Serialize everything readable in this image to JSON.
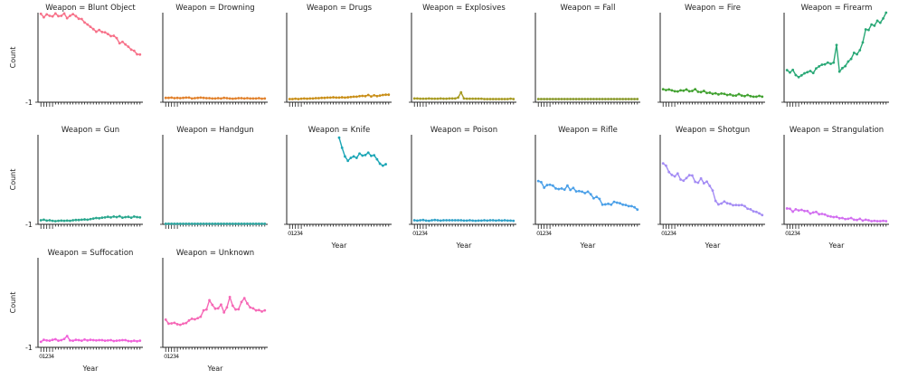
{
  "chart_data": {
    "type": "line",
    "facet_label": "Weapon",
    "xlabel": "Year",
    "ylabel": "Count",
    "xtick_labels": [
      "0",
      "1",
      "2",
      "3",
      "4"
    ],
    "ytick_label": "-1",
    "x": [
      0,
      1,
      2,
      3,
      4,
      5,
      6,
      7,
      8,
      9,
      10,
      11,
      12,
      13,
      14,
      15,
      16,
      17,
      18,
      19,
      20,
      21,
      22,
      23,
      24,
      25,
      26,
      27,
      28,
      29,
      30,
      31,
      32,
      33,
      34
    ],
    "xlim": [
      -1,
      35
    ],
    "ylim": [
      -1,
      30
    ],
    "panels": [
      {
        "weapon": "Blunt Object",
        "color": "#f77189",
        "x_start": 0,
        "values": [
          29.6,
          28.4,
          29.4,
          28.9,
          28.7,
          29.7,
          28.8,
          28.9,
          29.7,
          28.1,
          28.9,
          29.5,
          28.8,
          27.9,
          27.8,
          26.6,
          25.9,
          25.1,
          24.3,
          23.4,
          24.0,
          23.3,
          23.2,
          22.6,
          21.9,
          22.0,
          21.2,
          19.4,
          19.9,
          19.0,
          18.2,
          17.2,
          16.8,
          15.6,
          15.5
        ]
      },
      {
        "weapon": "Drowning",
        "color": "#e1812c",
        "x_start": 0,
        "values": [
          0.5,
          0.5,
          0.6,
          0.4,
          0.5,
          0.4,
          0.5,
          0.6,
          0.6,
          0.3,
          0.4,
          0.5,
          0.6,
          0.5,
          0.4,
          0.4,
          0.3,
          0.3,
          0.4,
          0.3,
          0.5,
          0.4,
          0.3,
          0.2,
          0.3,
          0.4,
          0.4,
          0.3,
          0.4,
          0.3,
          0.3,
          0.3,
          0.4,
          0.2,
          0.3
        ]
      },
      {
        "weapon": "Drugs",
        "color": "#c98f19",
        "x_start": 0,
        "values": [
          0.1,
          0.1,
          0.2,
          0.1,
          0.2,
          0.3,
          0.2,
          0.3,
          0.3,
          0.4,
          0.4,
          0.5,
          0.5,
          0.6,
          0.6,
          0.7,
          0.6,
          0.6,
          0.7,
          0.6,
          0.7,
          0.8,
          0.9,
          0.9,
          1.1,
          1.2,
          1.1,
          1.5,
          1.0,
          1.4,
          1.1,
          1.3,
          1.5,
          1.6,
          1.6
        ]
      },
      {
        "weapon": "Explosives",
        "color": "#a79b22",
        "x_start": 0,
        "values": [
          0.3,
          0.3,
          0.2,
          0.2,
          0.2,
          0.3,
          0.2,
          0.2,
          0.2,
          0.3,
          0.2,
          0.2,
          0.3,
          0.3,
          0.3,
          0.6,
          2.4,
          0.3,
          0.2,
          0.2,
          0.2,
          0.2,
          0.2,
          0.2,
          0.1,
          0.1,
          0.1,
          0.1,
          0.1,
          0.1,
          0.1,
          0.1,
          0.1,
          0.2,
          0.1
        ]
      },
      {
        "weapon": "Fall",
        "color": "#8a9a2c",
        "x_start": 0,
        "values": [
          0.1,
          0.1,
          0.1,
          0.1,
          0.1,
          0.1,
          0.1,
          0.1,
          0.1,
          0.1,
          0.1,
          0.1,
          0.1,
          0.1,
          0.1,
          0.1,
          0.1,
          0.1,
          0.1,
          0.1,
          0.1,
          0.1,
          0.1,
          0.1,
          0.1,
          0.1,
          0.1,
          0.1,
          0.1,
          0.1,
          0.1,
          0.1,
          0.1,
          0.1,
          0.1
        ]
      },
      {
        "weapon": "Fire",
        "color": "#42a231",
        "x_start": 0,
        "values": [
          3.5,
          3.2,
          3.4,
          3.1,
          2.8,
          2.7,
          3.1,
          3.0,
          3.4,
          2.8,
          2.9,
          3.5,
          2.6,
          2.5,
          2.9,
          2.2,
          2.3,
          1.9,
          2.1,
          1.7,
          2.0,
          1.9,
          1.5,
          1.7,
          1.3,
          1.3,
          1.8,
          1.3,
          1.1,
          1.5,
          1.1,
          0.9,
          0.9,
          1.2,
          0.9
        ]
      },
      {
        "weapon": "Firearm",
        "color": "#29a876",
        "x_start": 0,
        "values": [
          10.1,
          9.3,
          10.2,
          8.4,
          7.7,
          8.3,
          9.0,
          9.4,
          9.8,
          9.1,
          10.7,
          11.4,
          12.0,
          12.1,
          12.7,
          12.3,
          12.7,
          18.8,
          9.6,
          10.8,
          11.5,
          13.1,
          14.0,
          16.1,
          15.6,
          17.0,
          19.7,
          24.2,
          24.0,
          25.9,
          25.5,
          27.2,
          26.5,
          28.0,
          30.0
        ]
      },
      {
        "weapon": "Gun",
        "color": "#2aa78e",
        "x_start": 0,
        "values": [
          0.4,
          0.6,
          0.3,
          0.4,
          0.2,
          0.1,
          0.2,
          0.3,
          0.2,
          0.3,
          0.2,
          0.4,
          0.5,
          0.5,
          0.6,
          0.7,
          0.6,
          0.8,
          1.0,
          1.2,
          1.1,
          1.3,
          1.4,
          1.6,
          1.4,
          1.7,
          1.5,
          1.8,
          1.3,
          1.5,
          1.6,
          1.3,
          1.7,
          1.5,
          1.4
        ]
      },
      {
        "weapon": "Handgun",
        "color": "#2ca5a0",
        "x_start": 0,
        "values": [
          -0.8,
          -0.8,
          -0.8,
          -0.8,
          -0.8,
          -0.8,
          -0.8,
          -0.8,
          -0.8,
          -0.8,
          -0.8,
          -0.8,
          -0.8,
          -0.8,
          -0.8,
          -0.8,
          -0.8,
          -0.8,
          -0.8,
          -0.8,
          -0.8,
          -0.8,
          -0.8,
          -0.8,
          -0.8,
          -0.8,
          -0.8,
          -0.8,
          -0.8,
          -0.8,
          -0.8,
          -0.8,
          -0.8,
          -0.8,
          -0.8
        ]
      },
      {
        "weapon": "Knife",
        "color": "#1ca6b6",
        "x_start": 17,
        "values": [
          29.0,
          25.5,
          22.5,
          21.0,
          22.0,
          22.5,
          22.0,
          23.5,
          22.8,
          23.0,
          23.8,
          22.7,
          22.9,
          21.5,
          20.0,
          19.3,
          19.8
        ]
      },
      {
        "weapon": "Poison",
        "color": "#30a1c8",
        "x_start": 0,
        "values": [
          0.4,
          0.3,
          0.4,
          0.5,
          0.3,
          0.2,
          0.4,
          0.5,
          0.4,
          0.3,
          0.4,
          0.4,
          0.4,
          0.4,
          0.4,
          0.4,
          0.4,
          0.3,
          0.3,
          0.4,
          0.3,
          0.2,
          0.3,
          0.3,
          0.4,
          0.3,
          0.4,
          0.4,
          0.3,
          0.4,
          0.3,
          0.4,
          0.3,
          0.3,
          0.2
        ]
      },
      {
        "weapon": "Rifle",
        "color": "#4ba0e8",
        "x_start": 0,
        "values": [
          14.0,
          13.6,
          11.7,
          12.6,
          12.7,
          12.4,
          11.4,
          11.2,
          11.4,
          11.0,
          12.4,
          10.9,
          11.6,
          10.4,
          10.5,
          10.3,
          9.8,
          10.3,
          9.4,
          8.0,
          8.5,
          7.8,
          5.8,
          5.9,
          6.1,
          5.8,
          6.8,
          6.5,
          6.3,
          5.8,
          5.7,
          5.3,
          5.3,
          4.9,
          4.1
        ]
      },
      {
        "weapon": "Shotgun",
        "color": "#a48cf4",
        "x_start": 0,
        "values": [
          20.1,
          19.3,
          17.1,
          16.1,
          15.6,
          16.6,
          14.5,
          14.1,
          15.0,
          16.0,
          15.9,
          13.7,
          13.4,
          14.9,
          13.2,
          13.8,
          12.3,
          10.7,
          7.1,
          5.9,
          6.2,
          6.9,
          6.3,
          6.1,
          5.6,
          5.7,
          5.6,
          5.7,
          5.3,
          4.4,
          4.2,
          3.5,
          3.3,
          2.8,
          2.2
        ]
      },
      {
        "weapon": "Strangulation",
        "color": "#d26ff0",
        "x_start": 0,
        "values": [
          4.5,
          4.4,
          3.4,
          4.2,
          3.8,
          4.0,
          3.6,
          3.6,
          2.7,
          3.1,
          3.3,
          2.5,
          2.6,
          2.4,
          1.9,
          1.7,
          1.5,
          1.6,
          1.1,
          1.2,
          0.8,
          0.9,
          1.2,
          0.6,
          0.5,
          0.9,
          0.3,
          0.6,
          0.4,
          0.1,
          0.2,
          0.1,
          0.1,
          0.2,
          0.1
        ]
      },
      {
        "weapon": "Suffocation",
        "color": "#f062da",
        "x_start": 0,
        "values": [
          0.9,
          1.6,
          1.4,
          1.3,
          1.6,
          1.8,
          1.3,
          1.5,
          1.9,
          2.9,
          1.4,
          1.3,
          1.6,
          1.5,
          1.3,
          1.7,
          1.4,
          1.6,
          1.5,
          1.4,
          1.5,
          1.5,
          1.3,
          1.4,
          1.5,
          1.2,
          1.3,
          1.4,
          1.5,
          1.5,
          1.2,
          1.1,
          1.3,
          1.1,
          1.3
        ]
      },
      {
        "weapon": "Unknown",
        "color": "#f668b6",
        "x_start": 0,
        "values": [
          8.6,
          7.2,
          7.3,
          7.5,
          7.0,
          6.8,
          7.2,
          7.4,
          8.3,
          8.9,
          8.7,
          9.1,
          9.6,
          11.8,
          12.1,
          15.3,
          13.7,
          12.4,
          12.5,
          13.8,
          11.1,
          12.8,
          16.4,
          13.4,
          12.1,
          12.2,
          14.7,
          16.0,
          14.2,
          12.8,
          12.5,
          11.8,
          11.9,
          11.4,
          11.8
        ]
      }
    ]
  }
}
